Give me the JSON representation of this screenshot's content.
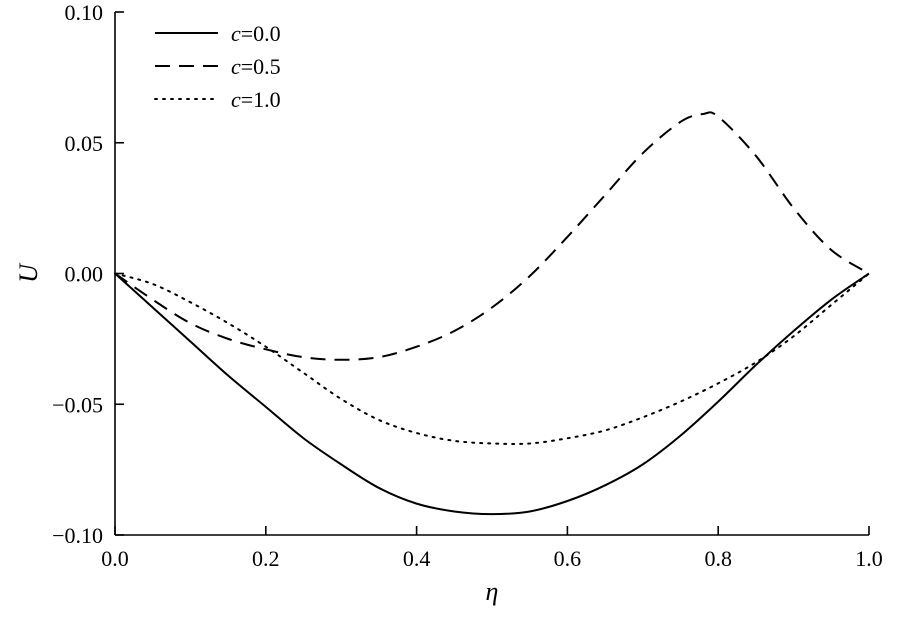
{
  "chart_data": {
    "type": "line",
    "title": "",
    "xlabel": "η",
    "ylabel": "U",
    "xlim": [
      0.0,
      1.0
    ],
    "ylim": [
      -0.1,
      0.1
    ],
    "xticks": [
      "0.0",
      "0.2",
      "0.4",
      "0.6",
      "0.8",
      "1.0"
    ],
    "yticks": [
      "0.10",
      "0.05",
      "0.00",
      "−0.05",
      "−0.10"
    ],
    "grid": false,
    "legend_position": "top-left",
    "series": [
      {
        "name": "c=0.0",
        "legend_var": "c",
        "legend_value": "=0.0",
        "line_style": "solid",
        "x": [
          0.0,
          0.05,
          0.1,
          0.15,
          0.2,
          0.25,
          0.3,
          0.35,
          0.4,
          0.45,
          0.5,
          0.55,
          0.6,
          0.65,
          0.7,
          0.75,
          0.8,
          0.85,
          0.9,
          0.95,
          1.0
        ],
        "y": [
          0.0,
          -0.013,
          -0.026,
          -0.039,
          -0.051,
          -0.063,
          -0.073,
          -0.082,
          -0.088,
          -0.091,
          -0.092,
          -0.091,
          -0.087,
          -0.081,
          -0.073,
          -0.062,
          -0.049,
          -0.035,
          -0.022,
          -0.01,
          0.0
        ]
      },
      {
        "name": "c=0.5",
        "legend_var": "c",
        "legend_value": "=0.5",
        "line_style": "dashed",
        "x": [
          0.0,
          0.05,
          0.1,
          0.15,
          0.2,
          0.25,
          0.3,
          0.35,
          0.4,
          0.45,
          0.5,
          0.55,
          0.6,
          0.65,
          0.7,
          0.75,
          0.78,
          0.8,
          0.85,
          0.9,
          0.95,
          1.0
        ],
        "y": [
          0.0,
          -0.01,
          -0.019,
          -0.025,
          -0.029,
          -0.032,
          -0.033,
          -0.032,
          -0.028,
          -0.022,
          -0.013,
          -0.001,
          0.014,
          0.03,
          0.046,
          0.058,
          0.061,
          0.06,
          0.045,
          0.025,
          0.009,
          0.0
        ]
      },
      {
        "name": "c=1.0",
        "legend_var": "c",
        "legend_value": "=1.0",
        "line_style": "dotted",
        "x": [
          0.0,
          0.05,
          0.1,
          0.15,
          0.2,
          0.25,
          0.3,
          0.35,
          0.4,
          0.45,
          0.5,
          0.55,
          0.6,
          0.65,
          0.7,
          0.75,
          0.8,
          0.85,
          0.9,
          0.95,
          1.0
        ],
        "y": [
          0.0,
          -0.004,
          -0.011,
          -0.019,
          -0.028,
          -0.038,
          -0.048,
          -0.056,
          -0.061,
          -0.064,
          -0.065,
          -0.065,
          -0.063,
          -0.06,
          -0.055,
          -0.049,
          -0.042,
          -0.034,
          -0.024,
          -0.012,
          0.0
        ]
      }
    ]
  }
}
